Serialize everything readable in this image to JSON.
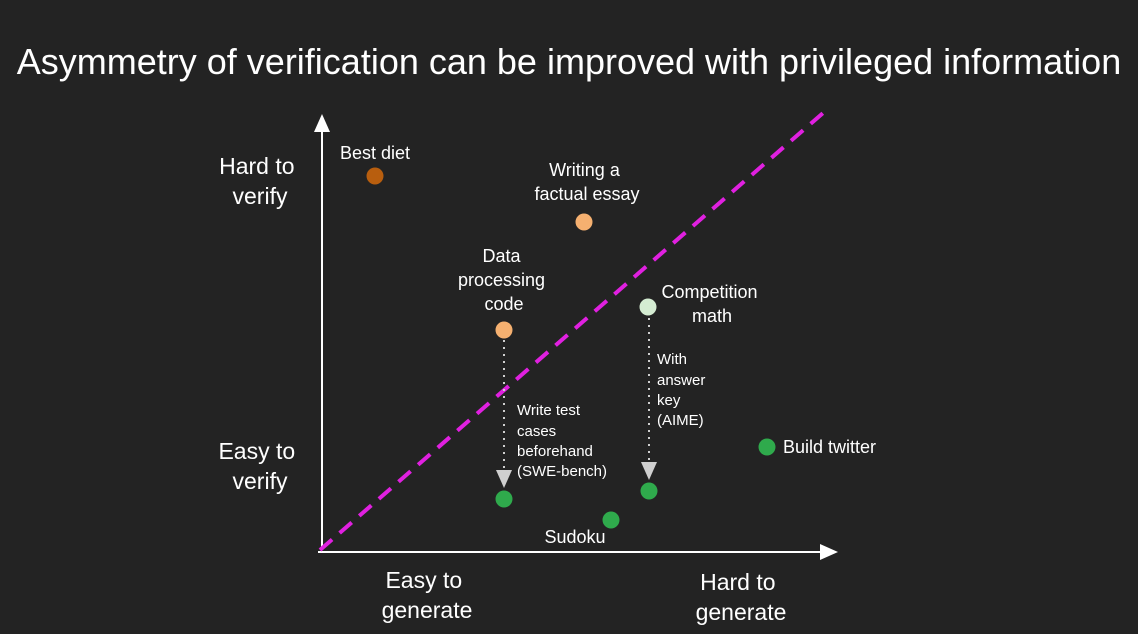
{
  "title": "Asymmetry of verification can be improved with privileged information",
  "axes": {
    "y_top": [
      "Hard to",
      "verify"
    ],
    "y_bottom": [
      "Easy to",
      "verify"
    ],
    "x_left": [
      "Easy to",
      "generate"
    ],
    "x_right": [
      "Hard to",
      "generate"
    ]
  },
  "colors": {
    "background": "#232323",
    "axis": "#ffffff",
    "diagonal": "#e020e0",
    "dark_orange": "#b85e0e",
    "light_orange": "#f5b070",
    "pale_green": "#d4ecd2",
    "green": "#2faa4c",
    "arrow": "#cfcfcf"
  },
  "points": [
    {
      "id": "best-diet",
      "lines": [
        "Best diet"
      ],
      "color": "#b85e0e"
    },
    {
      "id": "factual-essay",
      "lines": [
        "Writing a",
        "factual essay"
      ],
      "color": "#f5b070"
    },
    {
      "id": "data-processing",
      "lines": [
        "Data",
        "processing",
        "code"
      ],
      "color": "#f5b070"
    },
    {
      "id": "competition-math",
      "lines": [
        "Competition",
        "math"
      ],
      "color": "#d4ecd2"
    },
    {
      "id": "build-twitter",
      "lines": [
        "Build twitter"
      ],
      "color": "#2faa4c"
    },
    {
      "id": "sudoku",
      "lines": [
        "Sudoku"
      ],
      "color": "#2faa4c"
    },
    {
      "id": "data-processing-verified",
      "lines": [],
      "color": "#2faa4c"
    },
    {
      "id": "competition-math-verified",
      "lines": [],
      "color": "#2faa4c"
    }
  ],
  "annotations": [
    {
      "id": "test-cases",
      "lines": [
        "Write test",
        "cases",
        "beforehand",
        "(SWE-bench)"
      ]
    },
    {
      "id": "answer-key",
      "lines": [
        "With",
        "answer",
        "key",
        "(AIME)"
      ]
    }
  ]
}
